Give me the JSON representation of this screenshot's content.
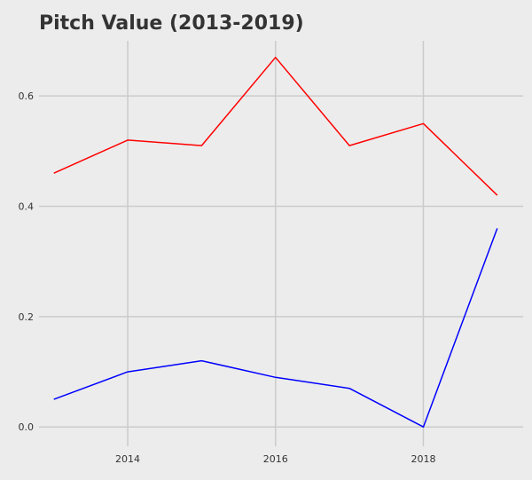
{
  "chart_data": {
    "type": "line",
    "title": "Pitch Value (2013-2019)",
    "xlabel": "",
    "ylabel": "",
    "x": [
      2013,
      2014,
      2015,
      2016,
      2017,
      2018,
      2019
    ],
    "xlim": [
      2012.8,
      2019.35
    ],
    "ylim": [
      -0.035,
      0.7
    ],
    "x_ticks": [
      2014,
      2016,
      2018
    ],
    "y_ticks": [
      0.0,
      0.2,
      0.4,
      0.6
    ],
    "x_tick_labels": [
      "2014",
      "2016",
      "2018"
    ],
    "y_tick_labels": [
      "0.0",
      "0.2",
      "0.4",
      "0.6"
    ],
    "grid": true,
    "legend": "none",
    "background": "#ececec",
    "grid_color": "#cbcbcb",
    "series": [
      {
        "color": "#ff0000",
        "values": [
          0.46,
          0.52,
          0.51,
          0.67,
          0.51,
          0.55,
          0.42
        ]
      },
      {
        "color": "#0000ff",
        "values": [
          0.05,
          0.1,
          0.12,
          0.09,
          0.07,
          0.0,
          0.36
        ]
      }
    ]
  }
}
